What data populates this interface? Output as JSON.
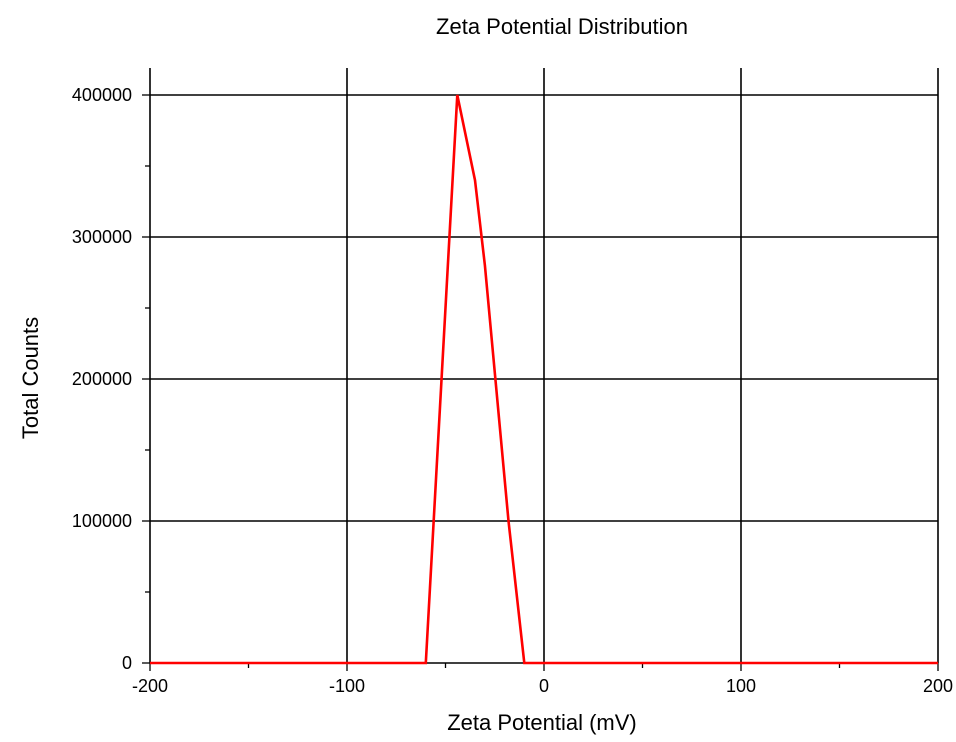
{
  "chart_data": {
    "type": "line",
    "title": "Zeta Potential Distribution",
    "xlabel": "Zeta Potential (mV)",
    "ylabel": "Total Counts",
    "xlim": [
      -200,
      200
    ],
    "ylim": [
      0,
      400000
    ],
    "x_ticks": [
      -200,
      -100,
      0,
      100,
      200
    ],
    "x_tick_labels": [
      "-200",
      "-100",
      "0",
      "100",
      "200"
    ],
    "y_ticks": [
      0,
      100000,
      200000,
      300000,
      400000
    ],
    "y_tick_labels": [
      "0",
      "100000",
      "200000",
      "300000",
      "400000"
    ],
    "x_minor_step": 50,
    "y_minor_step": 50000,
    "grid": true,
    "series": [
      {
        "color": "#ff0000",
        "x": [
          -200,
          -60,
          -44,
          -35,
          -30,
          -18,
          -10,
          200
        ],
        "y": [
          0,
          0,
          400000,
          340000,
          280000,
          100000,
          0,
          0
        ]
      }
    ]
  }
}
